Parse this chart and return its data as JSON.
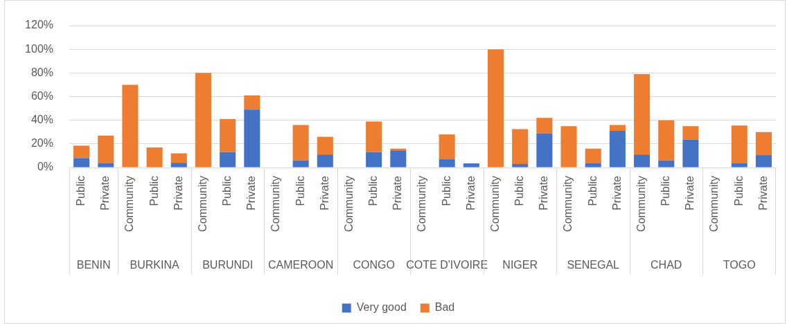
{
  "chart_data": {
    "type": "bar",
    "stacked": true,
    "categories": [
      "Public",
      "Private",
      "Community",
      "Public",
      "Private",
      "Community",
      "Public",
      "Private",
      "Community",
      "Public",
      "Private",
      "Community",
      "Public",
      "Private",
      "Community",
      "Public",
      "Private",
      "Community",
      "Public",
      "Private",
      "Community",
      "Public",
      "Private",
      "Community",
      "Public",
      "Private",
      "Community",
      "Public",
      "Private"
    ],
    "series": [
      {
        "name": "Very good",
        "color": "#4472c4",
        "values": [
          8,
          3.5,
          null,
          null,
          4,
          null,
          13,
          49,
          null,
          6,
          11,
          null,
          13,
          14.5,
          null,
          7,
          3.5,
          null,
          3,
          29,
          null,
          3.5,
          31,
          11,
          6,
          23.5,
          null,
          3.5,
          10.5
        ]
      },
      {
        "name": "Bad",
        "color": "#ed7d31",
        "values": [
          10.5,
          23.5,
          70,
          17,
          8,
          80,
          28,
          12,
          null,
          30,
          15,
          null,
          26,
          1.5,
          null,
          21,
          null,
          100,
          29.5,
          13,
          35,
          12.5,
          5,
          68,
          34,
          11.5,
          null,
          32,
          19.5
        ]
      }
    ],
    "ylim": [
      0,
      120
    ],
    "yticks": [
      {
        "value": 0,
        "label": "0%"
      },
      {
        "value": 20,
        "label": "20%"
      },
      {
        "value": 40,
        "label": "40%"
      },
      {
        "value": 60,
        "label": "60%"
      },
      {
        "value": 80,
        "label": "80%"
      },
      {
        "value": 100,
        "label": "100%"
      },
      {
        "value": 120,
        "label": "120%"
      }
    ],
    "grid": "y",
    "legend": "bottom",
    "annotations": [
      "BENIN",
      "BURKINA",
      "BURUNDI",
      "CAMEROON",
      "CONGO",
      "COTE D'IVOIRE",
      "NIGER",
      "SENEGAL",
      "CHAD",
      "TOGO"
    ]
  }
}
